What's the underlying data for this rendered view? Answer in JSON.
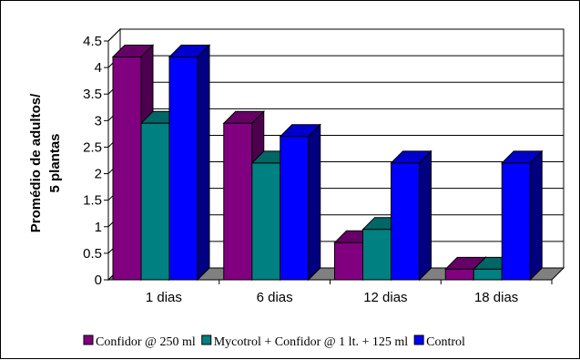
{
  "chart_data": {
    "type": "bar",
    "categories": [
      "1 dias",
      "6 dias",
      "12 dias",
      "18 dias"
    ],
    "series": [
      {
        "name": "Confidor @ 250 ml",
        "values": [
          4.2,
          2.95,
          0.7,
          0.2
        ],
        "color": "#800080",
        "side": "#4d004d",
        "top": "#660066"
      },
      {
        "name": "Mycotrol + Confidor @ 1 lt. + 125 ml",
        "values": [
          2.95,
          2.2,
          0.95,
          0.2
        ],
        "color": "#008080",
        "side": "#004d4d",
        "top": "#006666"
      },
      {
        "name": "Control",
        "values": [
          4.2,
          2.7,
          2.2,
          2.2
        ],
        "color": "#0000ff",
        "side": "#000080",
        "top": "#0000cc"
      }
    ],
    "ylabel_lines": [
      "Promédio de adultos/",
      "5 plantas"
    ],
    "yticks": [
      "0",
      "0.5",
      "1",
      "1.5",
      "2",
      "2.5",
      "3",
      "3.5",
      "4",
      "4.5"
    ],
    "ylim": [
      0,
      4.5
    ],
    "grid": true,
    "legend_position": "bottom",
    "floor_color": "#808080"
  }
}
